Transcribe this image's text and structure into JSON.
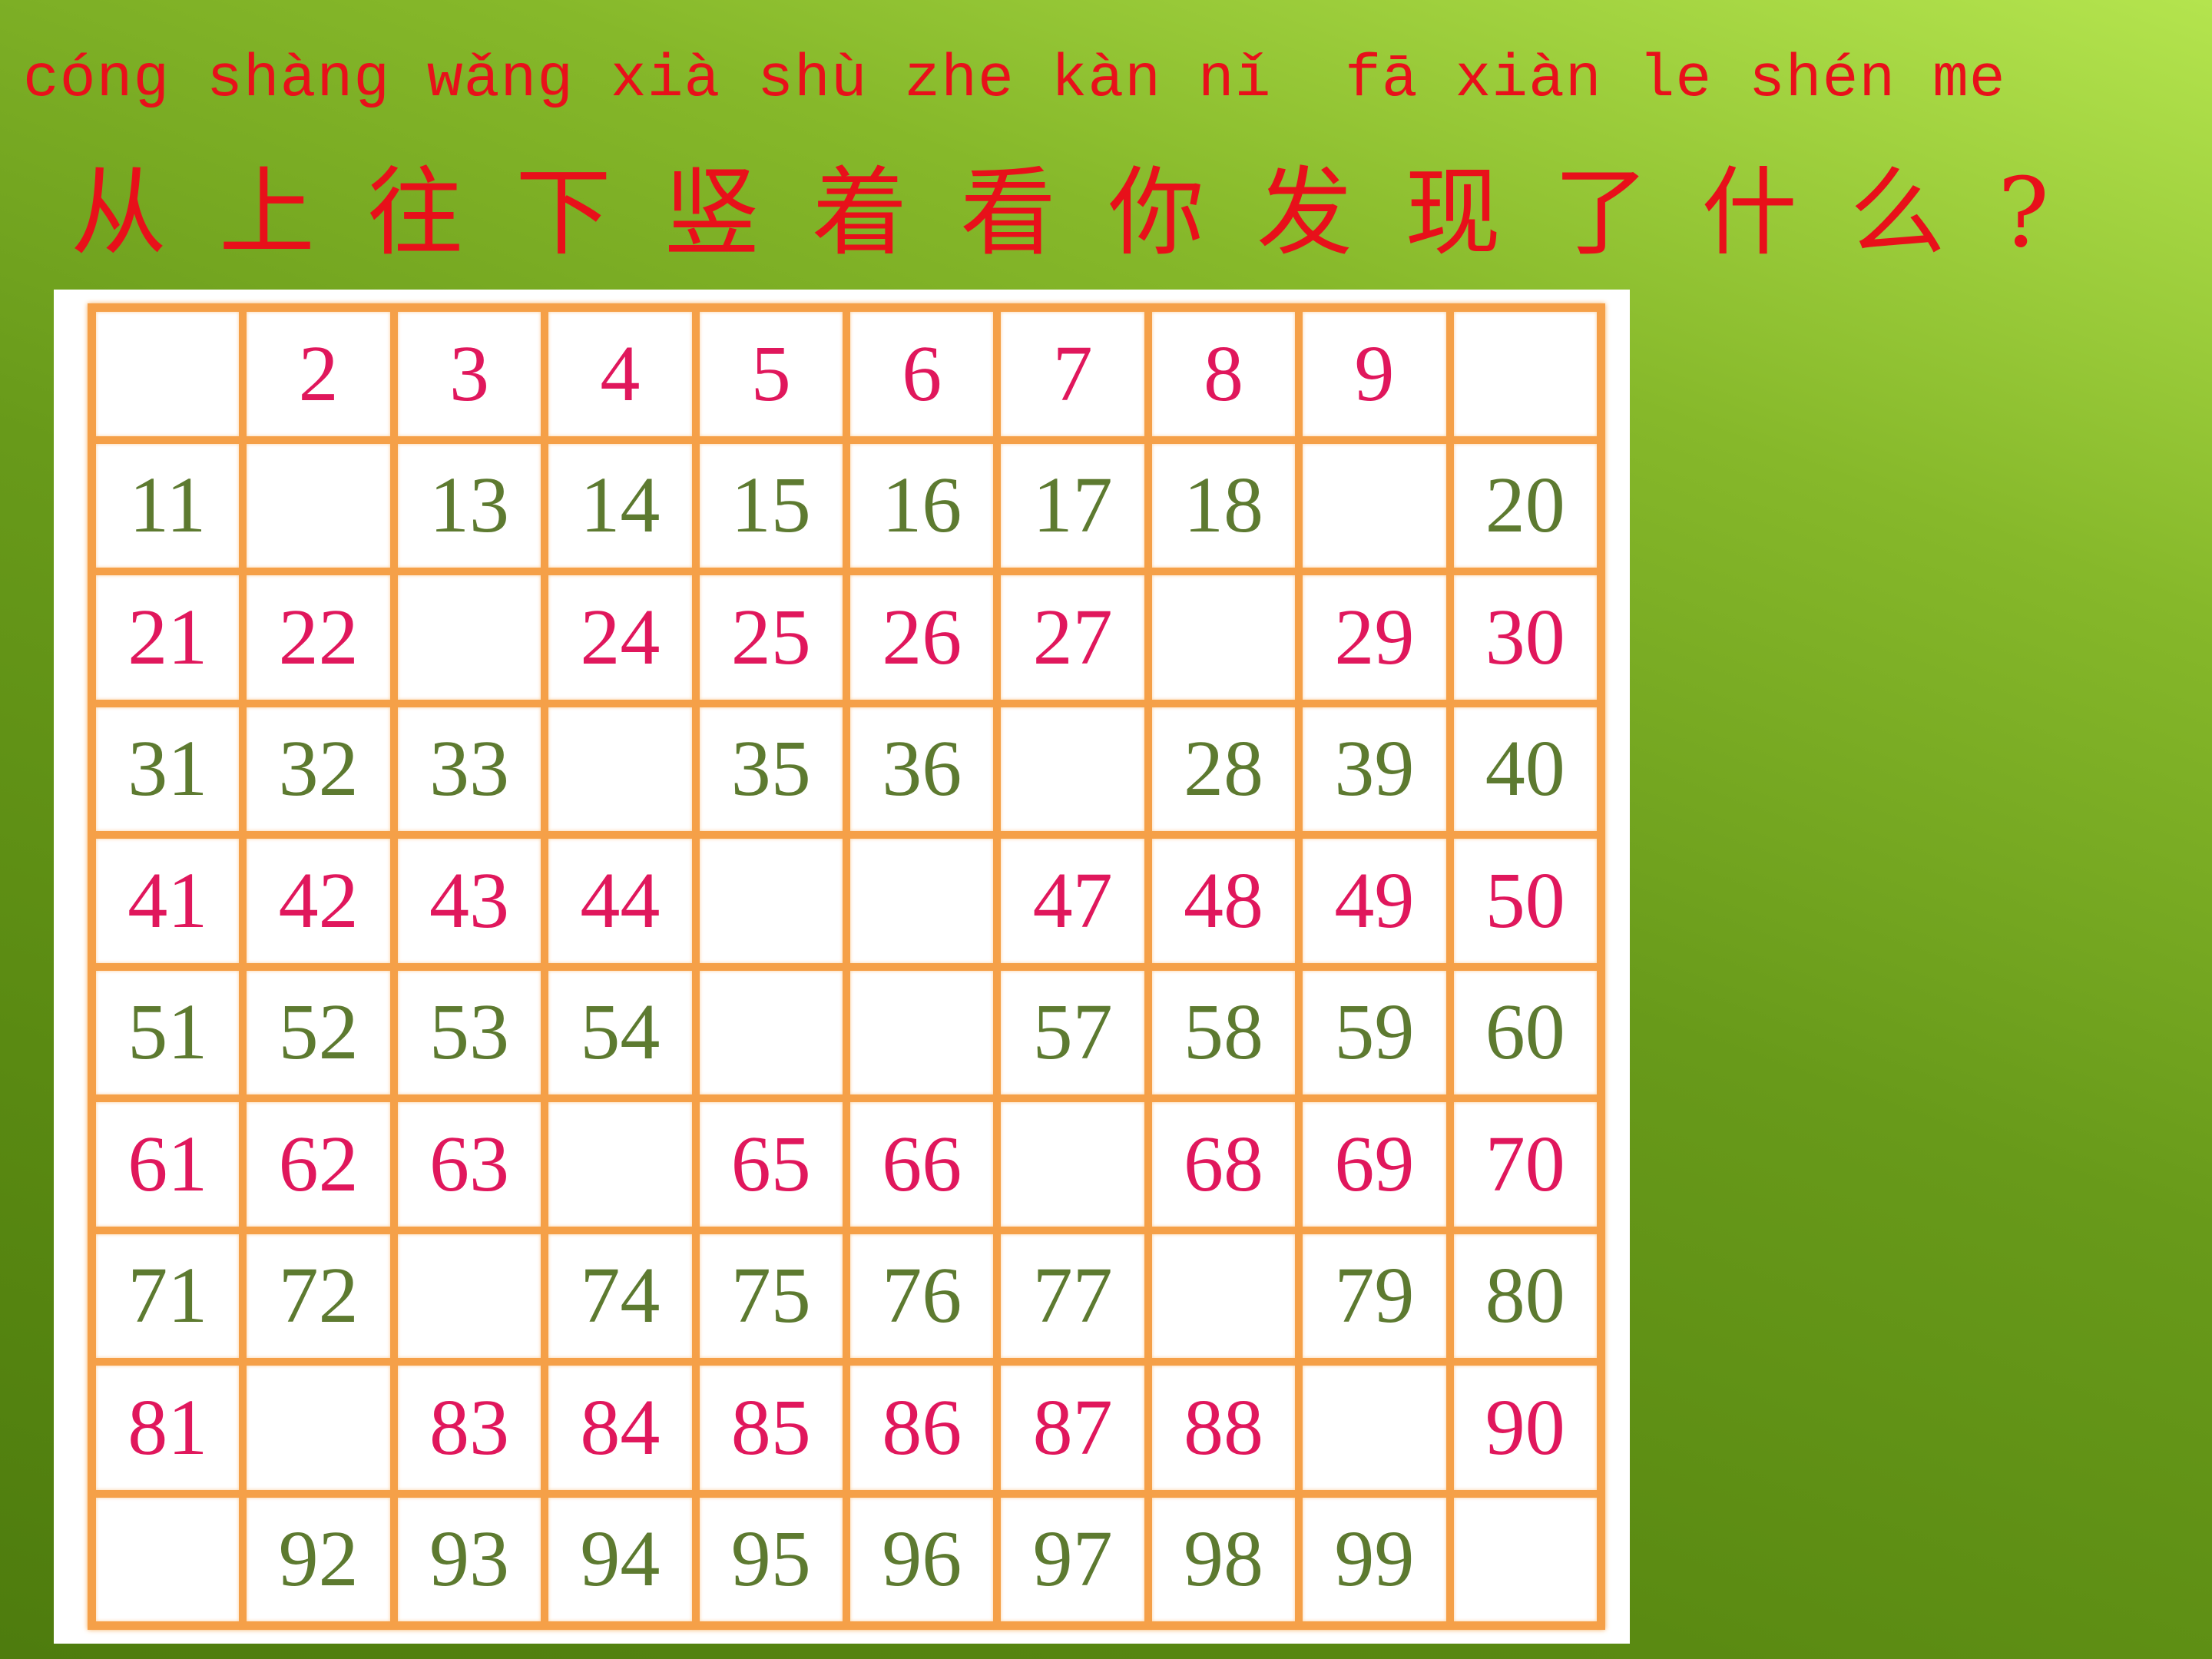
{
  "header": {
    "pinyin": "cóng shàng wǎng xià shù zhe kàn nǐ  fā xiàn le shén me",
    "title": "从上往下竖着看你发现了什么?"
  },
  "table": {
    "rows": [
      [
        null,
        2,
        3,
        4,
        5,
        6,
        7,
        8,
        9,
        null
      ],
      [
        11,
        null,
        13,
        14,
        15,
        16,
        17,
        18,
        null,
        20
      ],
      [
        21,
        22,
        null,
        24,
        25,
        26,
        27,
        null,
        29,
        30
      ],
      [
        31,
        32,
        33,
        null,
        35,
        36,
        null,
        28,
        39,
        40
      ],
      [
        41,
        42,
        43,
        44,
        null,
        null,
        47,
        48,
        49,
        50
      ],
      [
        51,
        52,
        53,
        54,
        null,
        null,
        57,
        58,
        59,
        60
      ],
      [
        61,
        62,
        63,
        null,
        65,
        66,
        null,
        68,
        69,
        70
      ],
      [
        71,
        72,
        null,
        74,
        75,
        76,
        77,
        null,
        79,
        80
      ],
      [
        81,
        null,
        83,
        84,
        85,
        86,
        87,
        88,
        null,
        90
      ],
      [
        null,
        92,
        93,
        94,
        95,
        96,
        97,
        98,
        99,
        null
      ]
    ]
  }
}
